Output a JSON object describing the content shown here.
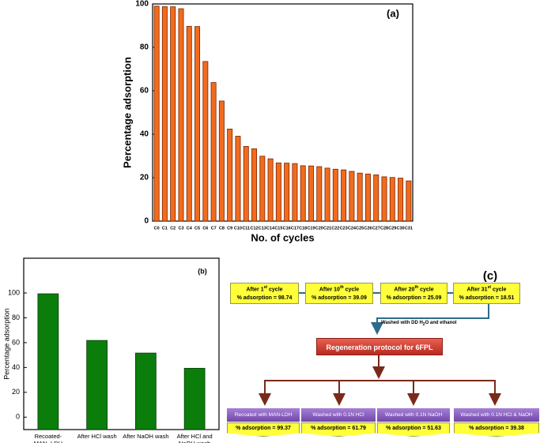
{
  "chart_data": [
    {
      "type": "bar",
      "annotation": "(a)",
      "ylabel": "Percentage adsorption",
      "xlabel": "No. of cycles",
      "categories": [
        "C0",
        "C1",
        "C2",
        "C3",
        "C4",
        "C5",
        "C6",
        "C7",
        "C8",
        "C9",
        "C10",
        "C11",
        "C12",
        "C13",
        "C14",
        "C15",
        "C16",
        "C17",
        "C18",
        "C19",
        "C20",
        "C21",
        "C22",
        "C23",
        "C24",
        "C25",
        "C26",
        "C27",
        "C28",
        "C29",
        "C30",
        "C31"
      ],
      "values": [
        99,
        98.74,
        98.7,
        97.8,
        89.7,
        89.6,
        73.5,
        63.8,
        55.3,
        42.4,
        39.09,
        34.4,
        33.3,
        29.9,
        28.7,
        26.8,
        26.7,
        26.5,
        25.5,
        25.4,
        25.09,
        24.4,
        23.9,
        23.6,
        22.9,
        22.1,
        21.7,
        21.3,
        20.4,
        20.1,
        19.8,
        18.51
      ],
      "color": "#f26b1d",
      "ylim": [
        0,
        100
      ],
      "yticks": [
        0,
        20,
        40,
        60,
        80,
        100
      ]
    },
    {
      "type": "bar",
      "annotation": "(b)",
      "ylabel": "Percentage adsorption",
      "categories": [
        "Recoated-\nMAN- LDH",
        "After HCl wash",
        "After NaOH wash",
        "After HCl and\nNaOH wash"
      ],
      "values": [
        99.37,
        61.79,
        51.63,
        39.38
      ],
      "color": "#0b7d0b",
      "ylim": [
        -10,
        128
      ],
      "yticks": [
        0,
        20,
        40,
        60,
        80,
        100
      ]
    }
  ],
  "diagram": {
    "label": "(c)",
    "cycles": [
      {
        "title": {
          "pre": "After 1",
          "sup": "st",
          "post": " cycle"
        },
        "text": "% adsorption = 98.74"
      },
      {
        "title": {
          "pre": "After 10",
          "sup": "th",
          "post": " cycle"
        },
        "text": "% adsorption = 39.09"
      },
      {
        "title": {
          "pre": "After 20",
          "sup": "th",
          "post": " cycle"
        },
        "text": "% adsorption = 25.09"
      },
      {
        "title": {
          "pre": "After 31",
          "sup": "st",
          "post": " cycle"
        },
        "text": "% adsorption = 18.51"
      }
    ],
    "wash_step": {
      "pre": "Washed with DD H",
      "sub": "2",
      "post": "O and ethanol"
    },
    "protocol": "Regeneration protocol for 6FPL",
    "results": [
      {
        "title": "Recoated with MAN-LDH",
        "text": "% adsorption = 99.37"
      },
      {
        "title": "Washed with 0.1N HCl",
        "text": "% adsorption = 61.79"
      },
      {
        "title": "Washed with 0.1N NaOH",
        "text": "% adsorption = 51.63"
      },
      {
        "title": "Washed with 0.1N HCl & NaOH",
        "text": "% adsorption = 39.38"
      }
    ]
  }
}
